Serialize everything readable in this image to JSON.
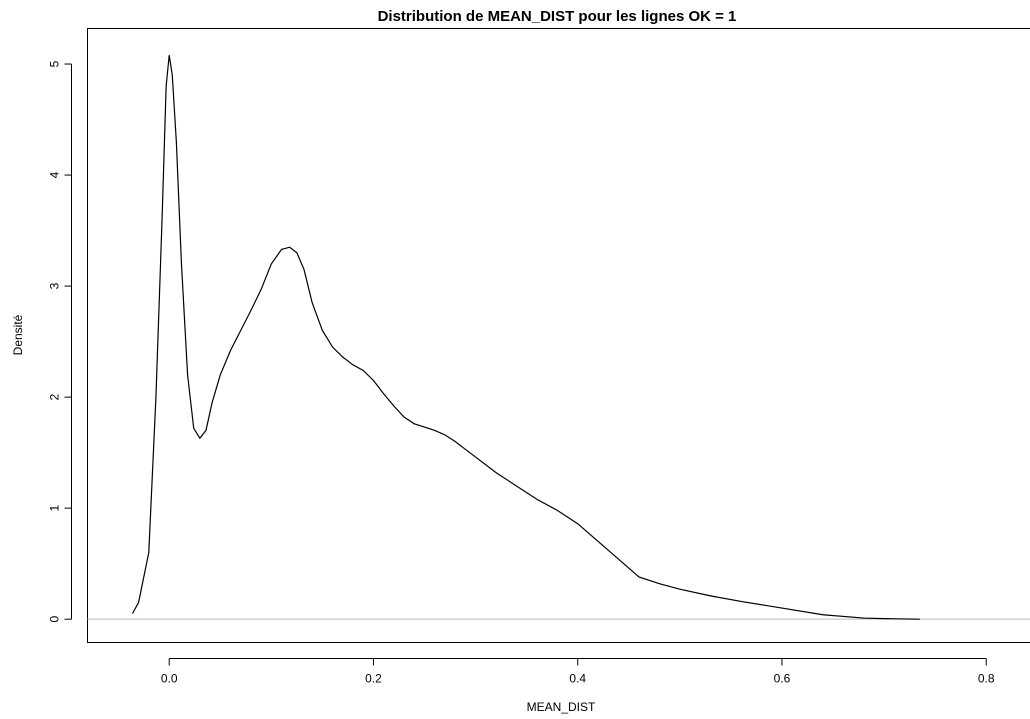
{
  "chart_data": {
    "type": "line",
    "title": "Distribution de MEAN_DIST pour les lignes OK = 1",
    "xlabel": "MEAN_DIST",
    "ylabel": "Densité",
    "xlim": [
      -0.08,
      0.86
    ],
    "ylim": [
      -0.21,
      5.32
    ],
    "x_ticks": [
      0.0,
      0.2,
      0.4,
      0.6,
      0.8
    ],
    "x_tick_labels": [
      "0.0",
      "0.2",
      "0.4",
      "0.6",
      "0.8"
    ],
    "y_ticks": [
      0,
      1,
      2,
      3,
      4,
      5
    ],
    "y_tick_labels": [
      "0",
      "1",
      "2",
      "3",
      "4",
      "5"
    ],
    "grid": false,
    "reference_line_y": 0,
    "series": [
      {
        "x": [
          -0.036,
          -0.03,
          -0.02,
          -0.013,
          -0.007,
          -0.003,
          0.0,
          0.003,
          0.007,
          0.012,
          0.018,
          0.024,
          0.03,
          0.036,
          0.042,
          0.05,
          0.06,
          0.07,
          0.08,
          0.09,
          0.1,
          0.11,
          0.118,
          0.125,
          0.132,
          0.14,
          0.15,
          0.16,
          0.17,
          0.18,
          0.19,
          0.2,
          0.21,
          0.22,
          0.23,
          0.24,
          0.25,
          0.26,
          0.27,
          0.28,
          0.29,
          0.3,
          0.32,
          0.34,
          0.36,
          0.38,
          0.4,
          0.42,
          0.44,
          0.46,
          0.48,
          0.5,
          0.53,
          0.56,
          0.6,
          0.64,
          0.68,
          0.7,
          0.735
        ],
        "y": [
          0.05,
          0.15,
          0.6,
          2.0,
          3.6,
          4.8,
          5.08,
          4.9,
          4.3,
          3.2,
          2.2,
          1.72,
          1.63,
          1.7,
          1.95,
          2.2,
          2.42,
          2.6,
          2.78,
          2.97,
          3.2,
          3.33,
          3.35,
          3.3,
          3.15,
          2.85,
          2.6,
          2.45,
          2.36,
          2.29,
          2.24,
          2.15,
          2.03,
          1.92,
          1.82,
          1.76,
          1.73,
          1.7,
          1.66,
          1.6,
          1.53,
          1.46,
          1.32,
          1.2,
          1.08,
          0.98,
          0.86,
          0.7,
          0.54,
          0.38,
          0.32,
          0.27,
          0.21,
          0.16,
          0.1,
          0.04,
          0.01,
          0.005,
          0.0
        ]
      }
    ]
  }
}
